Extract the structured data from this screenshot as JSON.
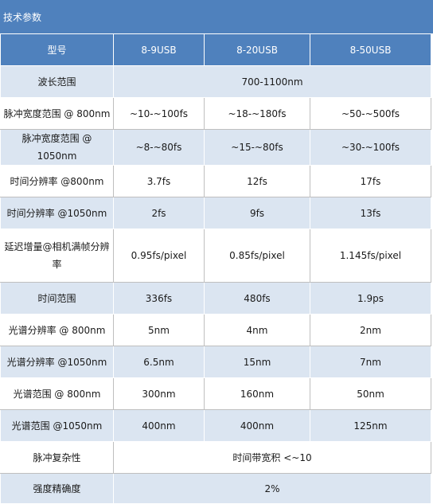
{
  "section_title": "技术参数",
  "header": [
    "型号",
    "8-9USB",
    "8-20USB",
    "8-50USB"
  ],
  "rows": [
    {
      "label": "波长范围",
      "cells": [
        "700-1100nm"
      ]
    },
    {
      "label": "脉冲宽度范围 @ 800nm",
      "cells": [
        "~10-~100fs",
        "~18-~180fs",
        "~50-~500fs"
      ]
    },
    {
      "label": "脉冲宽度范围 @ 1050nm",
      "cells": [
        "~8-~80fs",
        "~15-~80fs",
        "~30-~100fs"
      ]
    },
    {
      "label": "时间分辨率 @800nm",
      "cells": [
        "3.7fs",
        "12fs",
        "17fs"
      ]
    },
    {
      "label": "时间分辨率 @1050nm",
      "cells": [
        "2fs",
        "9fs",
        "13fs"
      ]
    },
    {
      "label": "延迟增量@相机满帧分辨率",
      "cells": [
        "0.95fs/pixel",
        "0.85fs/pixel",
        "1.145fs/pixel"
      ]
    },
    {
      "label": "时间范围",
      "cells": [
        "336fs",
        "480fs",
        "1.9ps"
      ]
    },
    {
      "label": "光谱分辨率 @ 800nm",
      "cells": [
        "5nm",
        "4nm",
        "2nm"
      ]
    },
    {
      "label": "光谱分辨率 @1050nm",
      "cells": [
        "6.5nm",
        "15nm",
        "7nm"
      ]
    },
    {
      "label": "光谱范围 @ 800nm",
      "cells": [
        "300nm",
        "160nm",
        "50nm"
      ]
    },
    {
      "label": "光谱范围 @1050nm",
      "cells": [
        "400nm",
        "400nm",
        "125nm"
      ]
    },
    {
      "label": "脉冲复杂性",
      "cells": [
        "时间带宽积 <~10"
      ]
    },
    {
      "label": "强度精确度",
      "cells": [
        "2%"
      ]
    }
  ]
}
